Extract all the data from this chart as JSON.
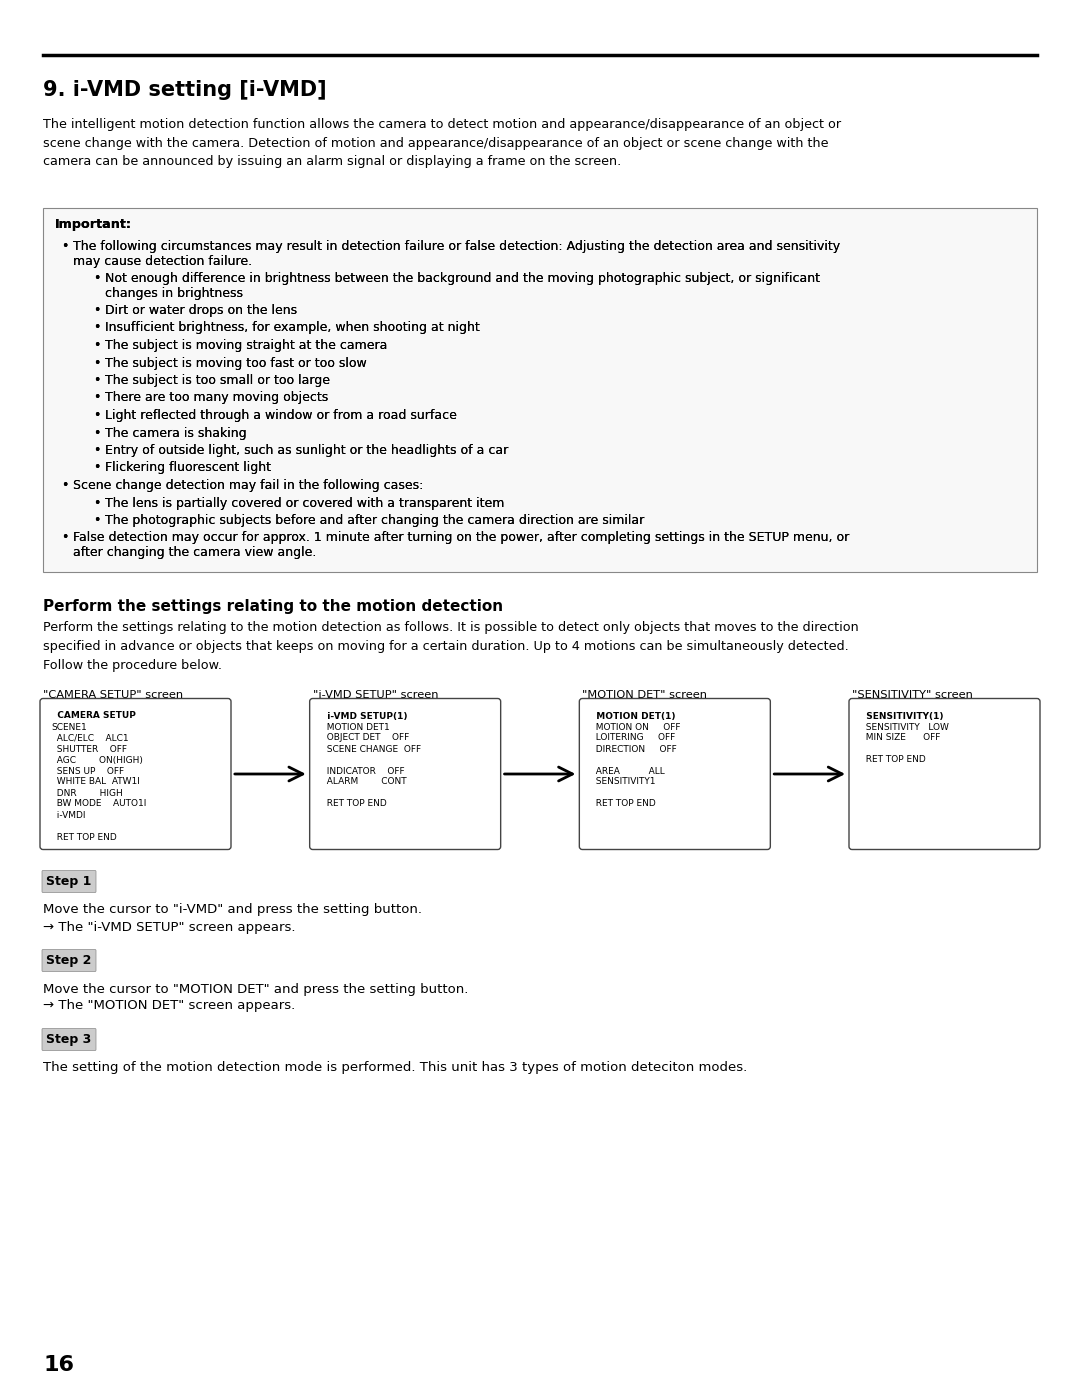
{
  "title": "9. i-VMD setting [i-VMD]",
  "bg_color": "#ffffff",
  "intro_text": "The intelligent motion detection function allows the camera to detect motion and appearance/disappearance of an object or\nscene change with the camera. Detection of motion and appearance/disappearance of an object or scene change with the\ncamera can be announced by issuing an alarm signal or displaying a frame on the screen.",
  "important_label": "Important:",
  "important_bullets": [
    {
      "level": 0,
      "text": "The following circumstances may result in detection failure or false detection: Adjusting the detection area and sensitivity\nmay cause detection failure."
    },
    {
      "level": 1,
      "text": "Not enough difference in brightness between the background and the moving photographic subject, or significant\nchanges in brightness"
    },
    {
      "level": 1,
      "text": "Dirt or water drops on the lens"
    },
    {
      "level": 1,
      "text": "Insufficient brightness, for example, when shooting at night"
    },
    {
      "level": 1,
      "text": "The subject is moving straight at the camera"
    },
    {
      "level": 1,
      "text": "The subject is moving too fast or too slow"
    },
    {
      "level": 1,
      "text": "The subject is too small or too large"
    },
    {
      "level": 1,
      "text": "There are too many moving objects"
    },
    {
      "level": 1,
      "text": "Light reflected through a window or from a road surface"
    },
    {
      "level": 1,
      "text": "The camera is shaking"
    },
    {
      "level": 1,
      "text": "Entry of outside light, such as sunlight or the headlights of a car"
    },
    {
      "level": 1,
      "text": "Flickering fluorescent light"
    },
    {
      "level": 0,
      "text": "Scene change detection may fail in the following cases:"
    },
    {
      "level": 1,
      "text": "The lens is partially covered or covered with a transparent item"
    },
    {
      "level": 1,
      "text": "The photographic subjects before and after changing the camera direction are similar"
    },
    {
      "level": 0,
      "text": "False detection may occur for approx. 1 minute after turning on the power, after completing settings in the SETUP menu, or\nafter changing the camera view angle."
    }
  ],
  "section2_title": "Perform the settings relating to the motion detection",
  "section2_text": "Perform the settings relating to the motion detection as follows. It is possible to detect only objects that moves to the direction\nspecified in advance or objects that keeps on moving for a certain duration. Up to 4 motions can be simultaneously detected.\nFollow the procedure below.",
  "screen_labels": [
    "\"CAMERA SETUP\" screen",
    "\"i-VMD SETUP\" screen",
    "\"MOTION DET\" screen",
    "\"SENSITIVITY\" screen"
  ],
  "screen1_lines": [
    "  **CAMERA SETUP**",
    "SCENE1",
    "  ALC/ELC    ALC1",
    "  SHUTTER    OFF",
    "  AGC        ON(HIGH)",
    "  SENS UP    OFF",
    "  WHITE BAL  ATW1l",
    "  DNR        HIGH",
    "  BW MODE    AUTO1l",
    "  i-VMDl",
    "",
    "  RET TOP END"
  ],
  "screen2_lines": [
    "  **i-VMD SETUP**(1)",
    "  MOTION DET1",
    "  OBJECT DET    OFF",
    "  SCENE CHANGE  OFF",
    "",
    "  INDICATOR    OFF",
    "  ALARM        CONT",
    "",
    "  RET TOP END"
  ],
  "screen3_lines": [
    "  **MOTION DET**(1)",
    "  MOTION ON     OFF",
    "  LOITERING     OFF",
    "  DIRECTION     OFF",
    "",
    "  AREA          ALL",
    "  SENSITIVITY1",
    "",
    "  RET TOP END"
  ],
  "screen4_lines": [
    "  **SENSITIVITY**(1)",
    "  SENSITIVITY   LOW",
    "  MIN SIZE      OFF",
    "",
    "  RET TOP END"
  ],
  "step1_label": "Step 1",
  "step1_text": "Move the cursor to \"i-VMD\" and press the setting button.",
  "step1_arrow": "→ The \"i-VMD SETUP\" screen appears.",
  "step2_label": "Step 2",
  "step2_text": "Move the cursor to \"MOTION DET\" and press the setting button.",
  "step2_arrow": "→ The \"MOTION DET\" screen appears.",
  "step3_label": "Step 3",
  "step3_text": "The setting of the motion detection mode is performed. This unit has 3 types of motion deteciton modes.",
  "page_number": "16"
}
